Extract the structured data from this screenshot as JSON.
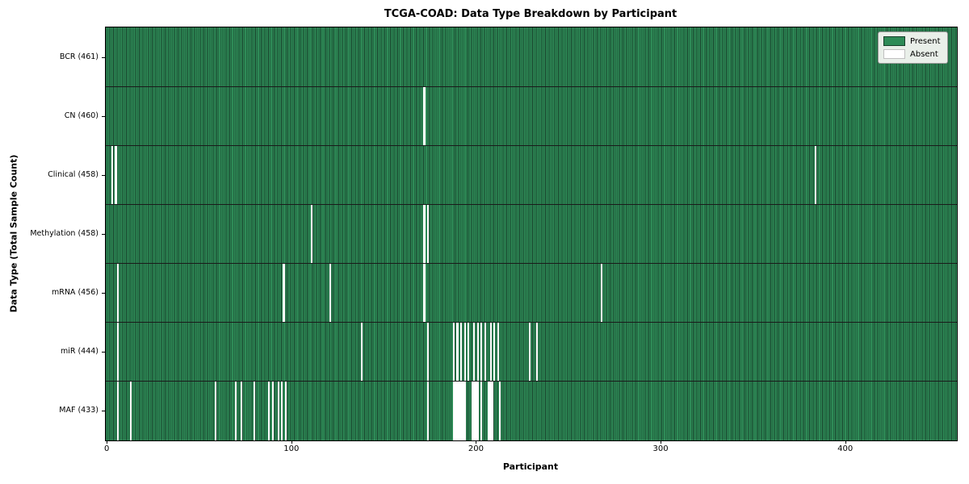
{
  "chart_data": {
    "type": "heatmap",
    "title": "TCGA-COAD: Data Type Breakdown by Participant",
    "xlabel": "Participant",
    "ylabel": "Data Type (Total Sample Count)",
    "total_participants": 461,
    "x_ticks": [
      0,
      100,
      200,
      300,
      400
    ],
    "legend": {
      "present_label": "Present",
      "absent_label": "Absent",
      "position": "upper right"
    },
    "colors": {
      "present": "#2e8b57",
      "absent": "#ffffff",
      "bar_edge": "#173f2a",
      "row_separator": "#1a1a1a",
      "plot_border": "#000000",
      "legend_bg": "#e9efe9"
    },
    "rows": [
      {
        "label": "BCR (461)",
        "data_type": "BCR",
        "sample_count": 461,
        "absent_participants": []
      },
      {
        "label": "CN (460)",
        "data_type": "CN",
        "sample_count": 460,
        "absent_participants": [
          172
        ]
      },
      {
        "label": "Clinical (458)",
        "data_type": "Clinical",
        "sample_count": 458,
        "absent_participants": [
          3,
          5,
          384
        ]
      },
      {
        "label": "Methylation (458)",
        "data_type": "Methylation",
        "sample_count": 458,
        "absent_participants": [
          111,
          172,
          174
        ]
      },
      {
        "label": "mRNA (456)",
        "data_type": "mRNA",
        "sample_count": 456,
        "absent_participants": [
          6,
          96,
          121,
          172,
          268
        ]
      },
      {
        "label": "miR (444)",
        "data_type": "miR",
        "sample_count": 444,
        "absent_participants": [
          6,
          138,
          174,
          188,
          190,
          192,
          194,
          196,
          199,
          201,
          203,
          205,
          208,
          210,
          212,
          229,
          233
        ]
      },
      {
        "label": "MAF (433)",
        "data_type": "MAF",
        "sample_count": 433,
        "absent_participants": [
          6,
          13,
          59,
          70,
          73,
          80,
          88,
          90,
          93,
          95,
          97,
          174,
          188,
          189,
          190,
          191,
          192,
          193,
          194,
          198,
          199,
          200,
          201,
          203,
          207,
          208,
          209,
          213
        ]
      }
    ]
  }
}
